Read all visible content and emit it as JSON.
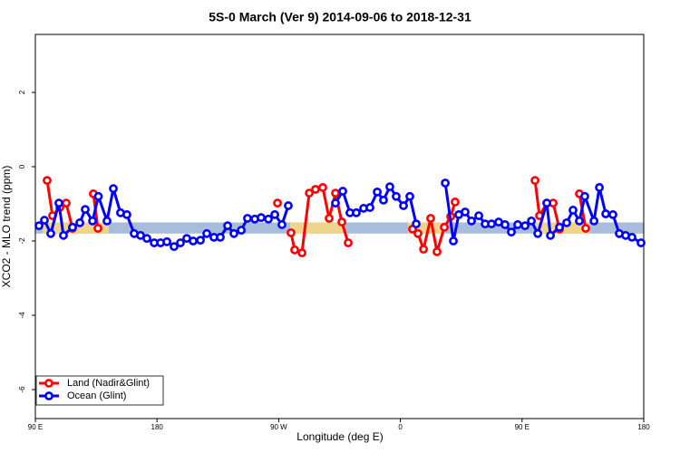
{
  "chart_data": {
    "type": "line",
    "title": "5S-0 March (Ver 9)   2014-09-06 to 2018-12-31",
    "x_label": "Longitude (deg E)",
    "y_label": "XCO2 - MLO trend (ppm)",
    "xlim": [
      90,
      540
    ],
    "ylim": [
      -6.78,
      3.56
    ],
    "xticks": [
      {
        "value": 90,
        "label": "90 E"
      },
      180,
      {
        "value": 270,
        "label": "90 W"
      },
      {
        "value": 360,
        "label": "0"
      },
      {
        "value": 450,
        "label": "90 E"
      },
      {
        "value": 540,
        "label": "180"
      }
    ],
    "yticks": [
      -6,
      -4,
      -2,
      0,
      2
    ],
    "bands": {
      "y": [
        -1.8,
        -1.5
      ],
      "color": "#a7bddb",
      "land_x": [
        [
          95.4,
          144.3
        ],
        [
          278.5,
          318.7
        ],
        [
          365.6,
          392.5
        ],
        [
          459.6,
          499.8
        ]
      ],
      "land_color": "#fcd87c"
    },
    "legend": "bottom-left",
    "series": [
      {
        "name": "Land (Nadir&Glint)",
        "color": "#ff0000",
        "x": [
          98.7,
          102.7,
          108.1,
          112.8,
          117.5,
          null,
          132.9,
          136.3,
          null,
          269.1,
          null,
          279.1,
          281.8,
          287.2,
          292.6,
          297.2,
          302.6,
          307.3,
          312.0,
          316.7,
          321.4,
          null,
          369.0,
          373.0,
          377.1,
          382.4,
          387.1,
          392.5,
          397.2,
          400.5,
          null,
          459.6,
          462.9,
          468.3,
          473.0,
          477.7,
          null,
          492.4,
          497.1
        ],
        "values": [
          -0.37,
          -1.32,
          -1.1,
          -0.98,
          -1.66,
          null,
          -0.73,
          -1.66,
          null,
          -0.98,
          null,
          -1.78,
          -2.24,
          -2.32,
          -0.71,
          -0.61,
          -0.56,
          -1.39,
          -0.71,
          -1.49,
          -2.05,
          null,
          -1.68,
          -1.8,
          -2.22,
          -1.39,
          -2.29,
          -1.63,
          -1.34,
          -0.95,
          null,
          -0.37,
          -1.32,
          -0.98,
          -0.98,
          -1.68,
          null,
          -0.73,
          -1.66
        ]
      },
      {
        "name": "Ocean (Glint)",
        "color": "#0000ff",
        "x": [
          92.7,
          96.7,
          101.4,
          107.4,
          110.8,
          117.5,
          122.9,
          126.9,
          132.3,
          136.6,
          143.0,
          147.7,
          153.0,
          157.7,
          163.1,
          167.8,
          172.5,
          177.9,
          182.6,
          187.3,
          192.6,
          197.3,
          202.0,
          206.7,
          212.1,
          216.8,
          222.1,
          226.8,
          232.2,
          236.9,
          242.3,
          246.9,
          252.3,
          257.0,
          262.4,
          267.1,
          272.4,
          277.1,
          null,
          312.0,
          317.4,
          322.7,
          327.4,
          332.8,
          337.5,
          342.9,
          347.5,
          352.2,
          356.9,
          362.3,
          367.0,
          371.7,
          null,
          393.2,
          399.2,
          403.2,
          407.9,
          412.6,
          418.0,
          422.7,
          427.4,
          432.7,
          437.4,
          442.1,
          446.8,
          452.2,
          456.9,
          461.6,
          468.3,
          471.0,
          477.7,
          483.0,
          487.7,
          492.4,
          496.4,
          503.2,
          507.2,
          511.9,
          517.2,
          521.9,
          526.6,
          531.3,
          538.0
        ],
        "values": [
          -1.59,
          -1.44,
          -1.8,
          -0.98,
          -1.85,
          -1.63,
          -1.51,
          -1.15,
          -1.46,
          -0.8,
          -1.46,
          -0.59,
          -1.24,
          -1.29,
          -1.8,
          -1.85,
          -1.93,
          -2.05,
          -2.05,
          -2.02,
          -2.15,
          -2.05,
          -1.93,
          -2.0,
          -1.98,
          -1.8,
          -1.9,
          -1.9,
          -1.59,
          -1.8,
          -1.71,
          -1.39,
          -1.41,
          -1.37,
          -1.41,
          -1.29,
          -1.56,
          -1.05,
          null,
          -0.98,
          -0.66,
          -1.24,
          -1.24,
          -1.12,
          -1.1,
          -0.68,
          -0.9,
          -0.54,
          -0.8,
          -1.05,
          -0.8,
          -1.54,
          null,
          -0.44,
          -2.0,
          -1.29,
          -1.22,
          -1.46,
          -1.32,
          -1.54,
          -1.54,
          -1.49,
          -1.56,
          -1.76,
          -1.56,
          -1.59,
          -1.46,
          -1.8,
          -0.98,
          -1.85,
          -1.63,
          -1.51,
          -1.17,
          -1.46,
          -0.8,
          -1.46,
          -0.56,
          -1.27,
          -1.29,
          -1.8,
          -1.85,
          -1.9,
          -2.05
        ]
      }
    ]
  }
}
